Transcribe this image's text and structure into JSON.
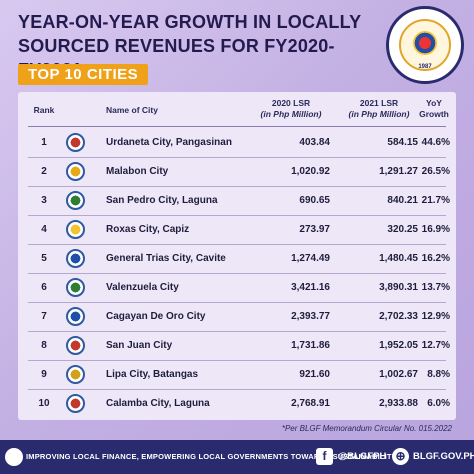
{
  "header": {
    "title_line1": "YEAR-ON-YEAR GROWTH IN LOCALLY",
    "title_line2": "SOURCED REVENUES FOR FY2020-FY2021",
    "badge": "TOP 10 CITIES",
    "seal_year": "1987"
  },
  "table": {
    "columns": {
      "rank": "Rank",
      "city": "Name of City",
      "lsr2020": "2020 LSR",
      "lsr2020_unit": "(in Php Million)",
      "lsr2021": "2021 LSR",
      "lsr2021_unit": "(in Php Million)",
      "yoy": "YoY",
      "yoy_sub": "Growth"
    },
    "rows": [
      {
        "rank": "1",
        "city": "Urdaneta City, Pangasinan",
        "lsr2020": "403.84",
        "lsr2021": "584.15",
        "yoy": "44.6%",
        "logo_color": "#c0392b"
      },
      {
        "rank": "2",
        "city": "Malabon City",
        "lsr2020": "1,020.92",
        "lsr2021": "1,291.27",
        "yoy": "26.5%",
        "logo_color": "#e6a817"
      },
      {
        "rank": "3",
        "city": "San Pedro City, Laguna",
        "lsr2020": "690.65",
        "lsr2021": "840.21",
        "yoy": "21.7%",
        "logo_color": "#2e7d32"
      },
      {
        "rank": "4",
        "city": "Roxas City, Capiz",
        "lsr2020": "273.97",
        "lsr2021": "320.25",
        "yoy": "16.9%",
        "logo_color": "#f4c430"
      },
      {
        "rank": "5",
        "city": "General Trias City, Cavite",
        "lsr2020": "1,274.49",
        "lsr2021": "1,480.45",
        "yoy": "16.2%",
        "logo_color": "#1f4fa8"
      },
      {
        "rank": "6",
        "city": "Valenzuela City",
        "lsr2020": "3,421.16",
        "lsr2021": "3,890.31",
        "yoy": "13.7%",
        "logo_color": "#2e7d32"
      },
      {
        "rank": "7",
        "city": "Cagayan De Oro City",
        "lsr2020": "2,393.77",
        "lsr2021": "2,702.33",
        "yoy": "12.9%",
        "logo_color": "#1f4fa8"
      },
      {
        "rank": "8",
        "city": "San Juan City",
        "lsr2020": "1,731.86",
        "lsr2021": "1,952.05",
        "yoy": "12.7%",
        "logo_color": "#c0392b"
      },
      {
        "rank": "9",
        "city": "Lipa City, Batangas",
        "lsr2020": "921.60",
        "lsr2021": "1,002.67",
        "yoy": "8.8%",
        "logo_color": "#d4a017"
      },
      {
        "rank": "10",
        "city": "Calamba City, Laguna",
        "lsr2020": "2,768.91",
        "lsr2021": "2,933.88",
        "yoy": "6.0%",
        "logo_color": "#c0392b"
      }
    ]
  },
  "footnote": "*Per BLGF Memorandum Circular No. 015.2022",
  "footer": {
    "tagline": "IMPROVING LOCAL FINANCE, EMPOWERING LOCAL GOVERNMENTS TOWARDS SUSTAINABILITY",
    "facebook_icon_glyph": "f",
    "handle": "@BLGFPH",
    "website_icon_glyph": "⊕",
    "website": "BLGF.GOV.PH"
  }
}
